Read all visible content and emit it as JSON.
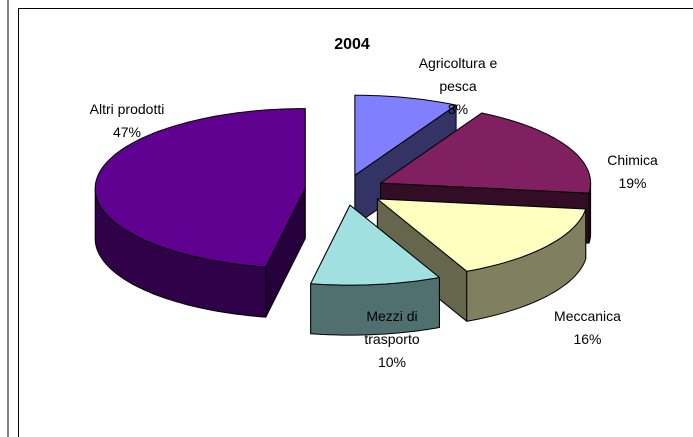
{
  "chart_data": {
    "type": "pie",
    "title": "2004",
    "categories": [
      "Agricoltura e pesca",
      "Chimica",
      "Meccanica",
      "Mezzi di trasporto",
      "Altri prodotti"
    ],
    "values": [
      8,
      19,
      16,
      10,
      47
    ],
    "value_labels": [
      "8%",
      "19%",
      "16%",
      "10%",
      "47%"
    ],
    "colors": [
      "#8080ff",
      "#802060",
      "#ffffc0",
      "#a0e0e0",
      "#600090"
    ]
  }
}
